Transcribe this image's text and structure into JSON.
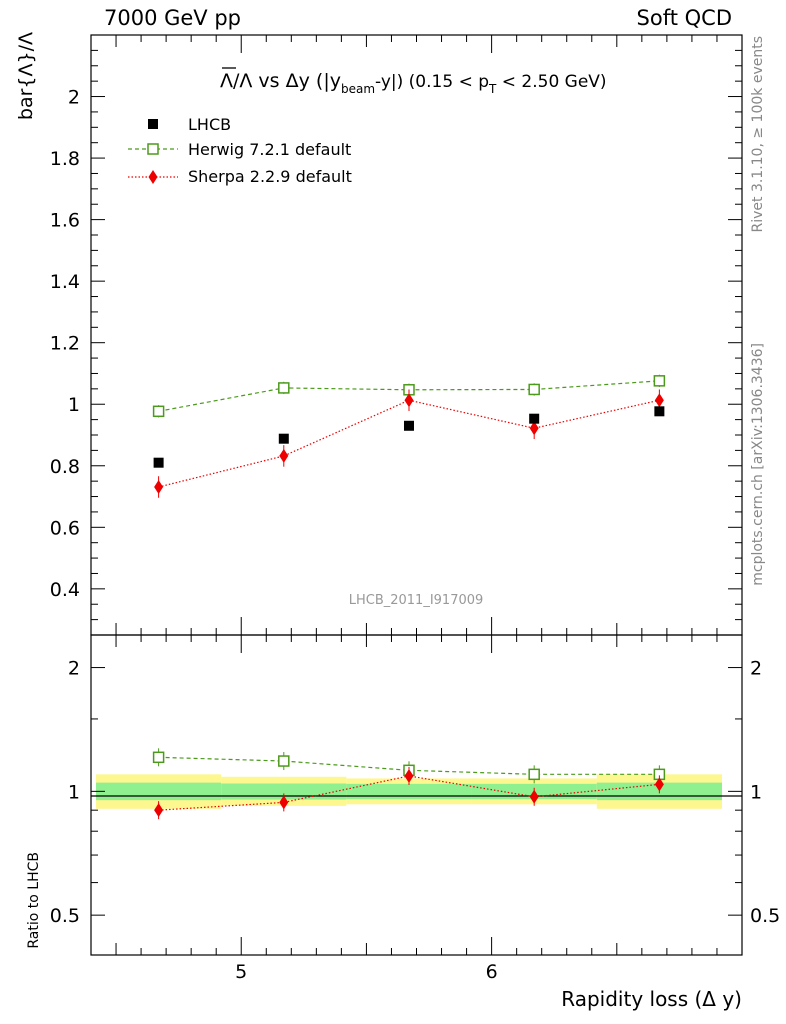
{
  "header": {
    "left": "7000 GeV pp",
    "right": "Soft QCD"
  },
  "side_labels": {
    "rivet": "Rivet 3.1.10, ≥ 100k events",
    "mcplots": "mcplots.cern.ch [arXiv:1306.3436]"
  },
  "watermark": "LHCB_2011_I917009",
  "title": {
    "prefix": "Λ/Λ vs Δy (|y",
    "beam": "beam",
    "mid": "-y|) (0.15 < p",
    "t": "T",
    "suffix": " < 2.50 GeV)"
  },
  "legend": [
    {
      "label": "LHCB",
      "color": "#000000",
      "marker": "square-filled"
    },
    {
      "label": "Herwig 7.2.1 default",
      "color": "#4c9a1c",
      "marker": "square-open"
    },
    {
      "label": "Sherpa 2.2.9 default",
      "color": "#ee0000",
      "marker": "diamond-filled"
    }
  ],
  "chart_data": {
    "type": "scatter",
    "xlabel": "Rapidity loss (Δ y)",
    "ylabel": "bar{Λ}/Λ",
    "ratio_ylabel": "Ratio to LHCB",
    "xlim": [
      4.4,
      7.0
    ],
    "ylim": [
      0.25,
      2.2
    ],
    "ratio_ylim": [
      0.4,
      2.4
    ],
    "x": [
      4.67,
      5.17,
      5.67,
      6.17,
      6.67
    ],
    "x_ticks": [
      "5",
      "6"
    ],
    "y_ticks": [
      "0.4",
      "0.6",
      "0.8",
      "1",
      "1.2",
      "1.4",
      "1.6",
      "1.8",
      "2"
    ],
    "ratio_ticks": [
      "0.5",
      "1",
      "2"
    ],
    "series": [
      {
        "name": "LHCB",
        "values": [
          0.81,
          0.888,
          0.93,
          0.953,
          0.977
        ],
        "errors": [
          0.008,
          0.008,
          0.008,
          0.008,
          0.008
        ]
      },
      {
        "name": "Herwig 7.2.1 default",
        "values": [
          0.977,
          1.053,
          1.047,
          1.048,
          1.076
        ],
        "errors": [
          0.02,
          0.02,
          0.02,
          0.02,
          0.02
        ]
      },
      {
        "name": "Sherpa 2.2.9 default",
        "values": [
          0.731,
          0.832,
          1.013,
          0.922,
          1.013
        ],
        "errors": [
          0.035,
          0.035,
          0.035,
          0.035,
          0.035
        ]
      }
    ],
    "ratio_series": [
      {
        "name": "Herwig 7.2.1 default",
        "values": [
          1.21,
          1.185,
          1.125,
          1.1,
          1.1
        ]
      },
      {
        "name": "Sherpa 2.2.9 default",
        "values": [
          0.9,
          0.94,
          1.09,
          0.97,
          1.04
        ]
      }
    ],
    "ratio_bands": {
      "bins": [
        [
          4.42,
          4.92
        ],
        [
          4.92,
          5.42
        ],
        [
          5.42,
          5.92
        ],
        [
          5.92,
          6.42
        ],
        [
          6.42,
          6.92
        ]
      ],
      "inner": [
        [
          0.952,
          1.05
        ],
        [
          0.955,
          1.045
        ],
        [
          0.957,
          1.043
        ],
        [
          0.957,
          1.043
        ],
        [
          0.952,
          1.05
        ]
      ],
      "outer": [
        [
          0.907,
          1.1
        ],
        [
          0.922,
          1.085
        ],
        [
          0.93,
          1.075
        ],
        [
          0.93,
          1.075
        ],
        [
          0.907,
          1.1
        ]
      ]
    }
  }
}
